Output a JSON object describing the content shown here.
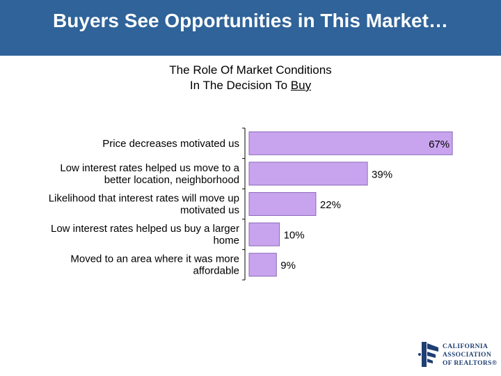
{
  "header": {
    "title": "Buyers See Opportunities in This Market…"
  },
  "subtitle": {
    "line1": "The Role Of Market Conditions",
    "line2_prefix": "In The Decision To ",
    "line2_underlined": "Buy"
  },
  "chart_data": {
    "type": "bar",
    "orientation": "horizontal",
    "categories": [
      [
        "Price decreases motivated us"
      ],
      [
        "Low interest rates helped us move to a",
        "better location, neighborhood"
      ],
      [
        "Likelihood that interest rates will move up",
        "motivated us"
      ],
      [
        "Low interest rates helped us buy a larger",
        "home"
      ],
      [
        "Moved to an area where it was more",
        "affordable"
      ]
    ],
    "values": [
      67,
      39,
      22,
      10,
      9
    ],
    "value_labels": [
      "67%",
      "39%",
      "22%",
      "10%",
      "9%"
    ],
    "unit": "%",
    "xlim": [
      0,
      100
    ],
    "grid": false,
    "legend": "none",
    "bar_color": "#c9a4ee",
    "bar_edge_color": "#8a68b8"
  },
  "logo": {
    "lines": [
      "CALIFORNIA",
      "ASSOCIATION",
      "OF REALTORS®"
    ],
    "color": "#1f3f73"
  }
}
